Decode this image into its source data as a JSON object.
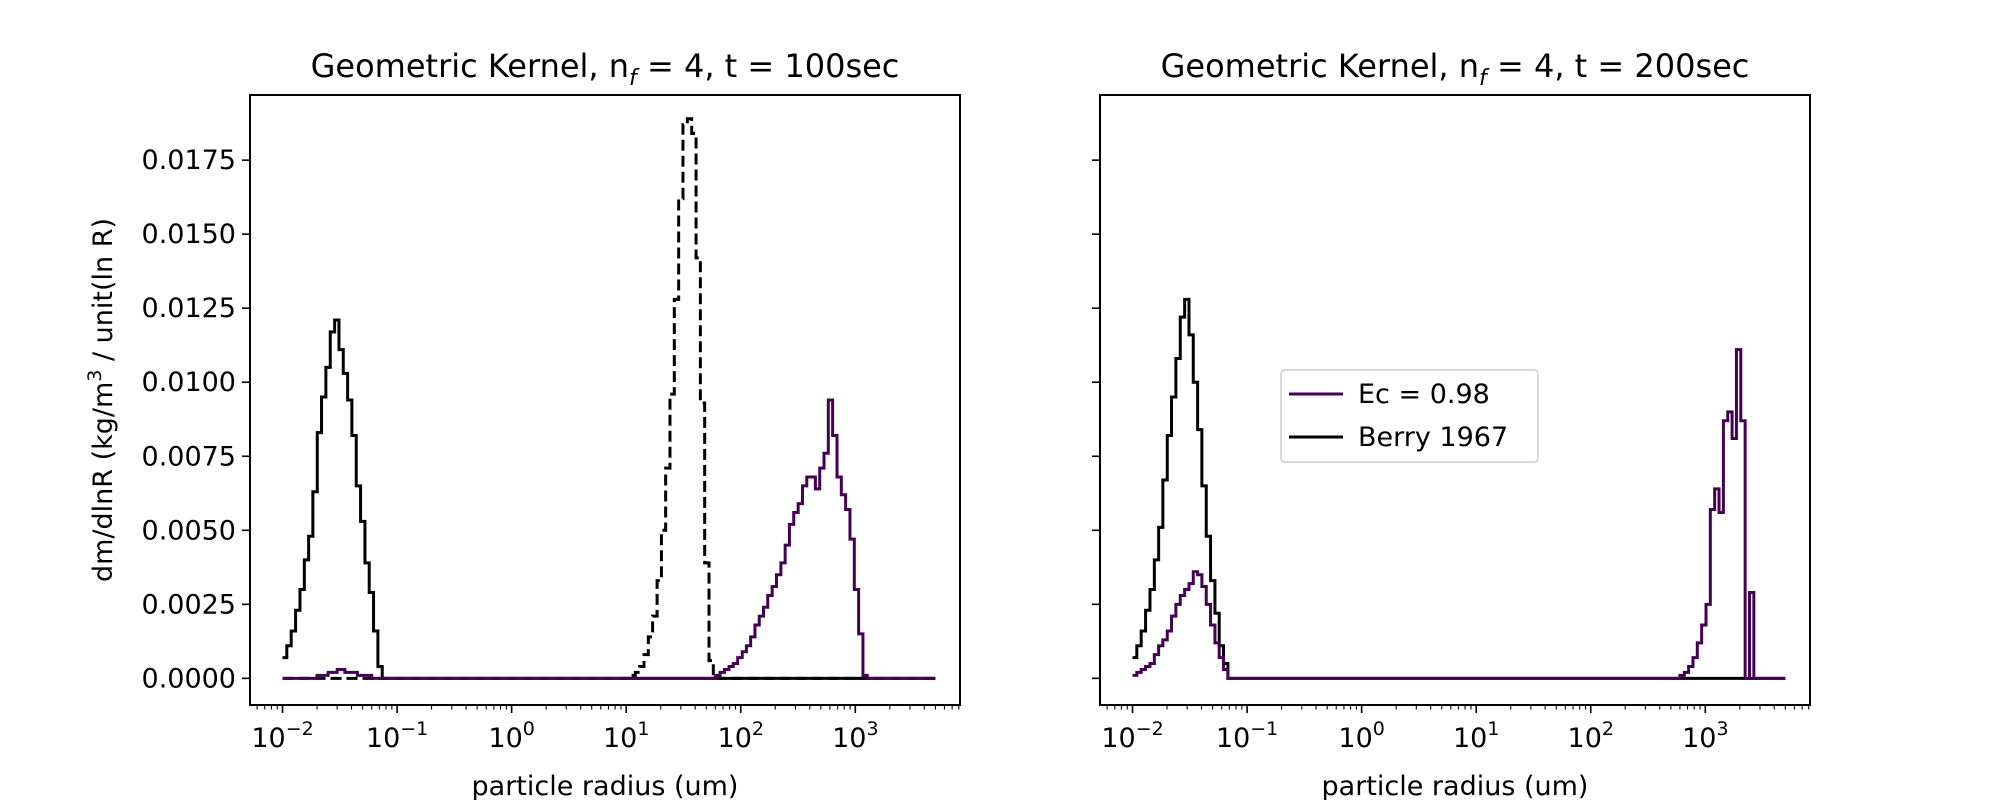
{
  "chart_data": [
    {
      "type": "line",
      "title": "Geometric Kernel, n_f = 4, t = 100sec",
      "title_parts": {
        "pre": "Geometric Kernel, n",
        "sub": "f",
        "post": " = 4, t = 100sec"
      },
      "xlabel": "particle radius (um)",
      "ylabel": "dm/dlnR (kg/m^3 / unit(ln R)",
      "ylabel_parts": {
        "pre": "dm/dlnR (kg/m",
        "sup": "3",
        "post": " / unit(ln R)"
      },
      "xscale": "log",
      "xlim": [
        0.0052,
        8200
      ],
      "ylim": [
        -0.0009,
        0.0197
      ],
      "xticks": [
        0.01,
        0.1,
        1,
        10,
        100,
        1000
      ],
      "xtick_labels": [
        {
          "base": "10",
          "exp": "−2"
        },
        {
          "base": "10",
          "exp": "−1"
        },
        {
          "base": "10",
          "exp": "0"
        },
        {
          "base": "10",
          "exp": "1"
        },
        {
          "base": "10",
          "exp": "2"
        },
        {
          "base": "10",
          "exp": "3"
        }
      ],
      "yticks": [
        0,
        0.0025,
        0.005,
        0.0075,
        0.01,
        0.0125,
        0.015,
        0.0175
      ],
      "ytick_labels": [
        "0.0000",
        "0.0025",
        "0.0050",
        "0.0075",
        "0.0100",
        "0.0125",
        "0.0150",
        "0.0175"
      ],
      "series": [
        {
          "color": "#000000",
          "style": "solid",
          "x": [
            0.01,
            0.0109,
            0.0119,
            0.013,
            0.0142,
            0.0155,
            0.0169,
            0.0184,
            0.0201,
            0.0219,
            0.0239,
            0.0261,
            0.0285,
            0.0311,
            0.0339,
            0.037,
            0.0403,
            0.044,
            0.048,
            0.0524,
            0.0571,
            0.0623,
            0.068,
            0.0742,
            0.081,
            0.0884,
            5000
          ],
          "y": [
            0.0007,
            0.0011,
            0.0016,
            0.0023,
            0.003,
            0.004,
            0.0048,
            0.0063,
            0.0083,
            0.0095,
            0.0105,
            0.0117,
            0.0121,
            0.0111,
            0.0103,
            0.0094,
            0.0082,
            0.0065,
            0.0053,
            0.0039,
            0.0029,
            0.0016,
            0.0004,
            0.0,
            0.0,
            0.0,
            0.0
          ]
        },
        {
          "color": "#000000",
          "style": "dashed",
          "x": [
            0.01,
            11,
            12,
            13.1,
            14.3,
            15.6,
            17.0,
            18.6,
            20.3,
            22.1,
            24.1,
            26.3,
            28.7,
            31.3,
            34.2,
            37.3,
            40.7,
            44.4,
            48.4,
            52.8,
            57.6,
            62.9,
            5000
          ],
          "y": [
            0.0,
            0.0001,
            0.0002,
            0.0004,
            0.0008,
            0.0014,
            0.0021,
            0.0033,
            0.005,
            0.0071,
            0.0096,
            0.0128,
            0.0162,
            0.0187,
            0.0189,
            0.0184,
            0.0142,
            0.0093,
            0.0039,
            0.0006,
            0.0,
            0.0,
            0.0
          ]
        },
        {
          "color": "#440154",
          "style": "solid",
          "x": [
            0.01,
            0.02,
            0.025,
            0.03,
            0.035,
            0.045,
            0.06,
            0.08,
            0.1,
            60,
            66,
            72,
            79,
            86,
            94,
            103,
            112,
            122,
            133,
            145,
            158,
            172,
            188,
            205,
            224,
            244,
            266,
            290,
            317,
            346,
            377,
            411,
            448,
            489,
            533,
            581,
            634,
            692,
            755,
            823,
            898,
            980,
            1069,
            1166,
            1272,
            1388,
            1514,
            5000
          ],
          "y": [
            0.0,
            0.0001,
            0.0002,
            0.0003,
            0.0002,
            0.0001,
            0.0,
            0.0,
            0.0,
            0.0001,
            0.0002,
            0.0003,
            0.0004,
            0.0005,
            0.0007,
            0.0009,
            0.0011,
            0.0014,
            0.0018,
            0.0021,
            0.0024,
            0.0028,
            0.0031,
            0.0035,
            0.0039,
            0.0045,
            0.0052,
            0.0056,
            0.0059,
            0.0065,
            0.0068,
            0.0068,
            0.0064,
            0.0071,
            0.0076,
            0.0094,
            0.0082,
            0.0068,
            0.0062,
            0.0057,
            0.0047,
            0.003,
            0.0015,
            0.0001,
            0.0,
            0.0,
            0.0,
            0.0
          ]
        }
      ]
    },
    {
      "type": "line",
      "title": "Geometric Kernel, n_f = 4, t = 200sec",
      "title_parts": {
        "pre": "Geometric Kernel, n",
        "sub": "f",
        "post": " = 4, t = 200sec"
      },
      "xlabel": "particle radius (um)",
      "ylabel": "",
      "xscale": "log",
      "xlim": [
        0.0052,
        8200
      ],
      "ylim": [
        -0.0009,
        0.0197
      ],
      "xticks": [
        0.01,
        0.1,
        1,
        10,
        100,
        1000
      ],
      "xtick_labels": [
        {
          "base": "10",
          "exp": "−2"
        },
        {
          "base": "10",
          "exp": "−1"
        },
        {
          "base": "10",
          "exp": "0"
        },
        {
          "base": "10",
          "exp": "1"
        },
        {
          "base": "10",
          "exp": "2"
        },
        {
          "base": "10",
          "exp": "3"
        }
      ],
      "yticks": [
        0,
        0.0025,
        0.005,
        0.0075,
        0.01,
        0.0125,
        0.015,
        0.0175
      ],
      "ytick_labels": [],
      "legend": {
        "placement": "center",
        "entries": [
          {
            "label": "Ec = 0.98",
            "color": "#440154"
          },
          {
            "label": "Berry 1967",
            "color": "#000000"
          }
        ]
      },
      "series": [
        {
          "color": "#000000",
          "style": "solid",
          "x": [
            0.01,
            0.0109,
            0.0119,
            0.013,
            0.0142,
            0.0155,
            0.0169,
            0.0184,
            0.0201,
            0.0219,
            0.0239,
            0.0261,
            0.0285,
            0.0311,
            0.0339,
            0.037,
            0.0403,
            0.044,
            0.048,
            0.0524,
            0.0571,
            0.0623,
            0.068,
            0.0742,
            0.081,
            0.0884,
            5000
          ],
          "y": [
            0.0007,
            0.0011,
            0.0016,
            0.0023,
            0.003,
            0.004,
            0.0051,
            0.0067,
            0.0082,
            0.0095,
            0.0108,
            0.0122,
            0.0128,
            0.0116,
            0.01,
            0.0084,
            0.0065,
            0.0048,
            0.0033,
            0.0022,
            0.0011,
            0.0005,
            0.0,
            0.0,
            0.0,
            0.0,
            0.0
          ]
        },
        {
          "color": "#440154",
          "style": "solid",
          "x": [
            0.01,
            0.0109,
            0.0119,
            0.013,
            0.0142,
            0.0155,
            0.0169,
            0.0184,
            0.0201,
            0.0219,
            0.0239,
            0.0261,
            0.0285,
            0.0311,
            0.0339,
            0.037,
            0.0403,
            0.044,
            0.048,
            0.0524,
            0.0571,
            0.0623,
            0.068,
            0.0742,
            0.081,
            0.0884,
            0.1,
            600,
            655,
            715,
            780,
            851,
            929,
            1014,
            1106,
            1207,
            1318,
            1438,
            1570,
            1713,
            1869,
            2040,
            2226,
            2430,
            2652,
            5000
          ],
          "y": [
            0.0001,
            0.0002,
            0.0003,
            0.0004,
            0.0005,
            0.0008,
            0.0011,
            0.0013,
            0.0016,
            0.0021,
            0.0025,
            0.0028,
            0.003,
            0.0032,
            0.0036,
            0.0035,
            0.0031,
            0.0025,
            0.0018,
            0.0012,
            0.0007,
            0.0003,
            0.0,
            0.0,
            0.0,
            0.0,
            0.0,
            0.0001,
            0.0002,
            0.0004,
            0.0007,
            0.0012,
            0.0018,
            0.0025,
            0.0057,
            0.0064,
            0.0056,
            0.0087,
            0.009,
            0.0081,
            0.0111,
            0.0087,
            0.0,
            0.0029,
            0.0,
            0.0
          ]
        }
      ]
    }
  ]
}
